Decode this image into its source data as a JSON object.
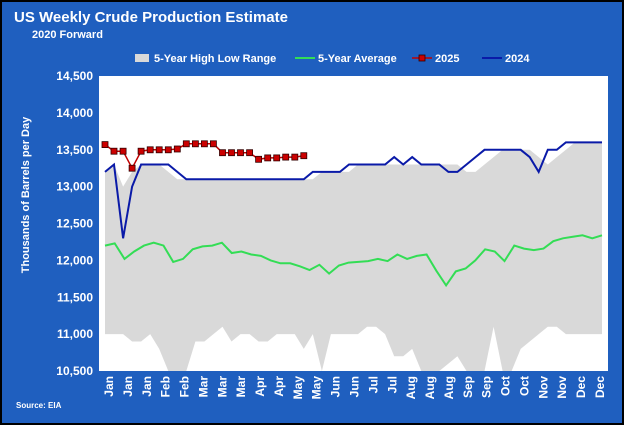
{
  "chart_data": {
    "type": "line",
    "title": "US Weekly Crude Production Estimate",
    "subtitle": "2020 Forward",
    "ylabel": "Thousands of Barrels per Day",
    "source": "Source: EIA",
    "ylim": [
      10500,
      14500
    ],
    "yticks": [
      10500,
      11000,
      11500,
      12000,
      12500,
      13000,
      13500,
      14000,
      14500
    ],
    "ytick_labels": [
      "10,500",
      "11,000",
      "11,500",
      "12,000",
      "12,500",
      "13,000",
      "13,500",
      "14,000",
      "14,500"
    ],
    "x_tick_labels": [
      "Jan",
      "Jan",
      "Jan",
      "Feb",
      "Feb",
      "Mar",
      "Mar",
      "Mar",
      "Apr",
      "Apr",
      "May",
      "May",
      "Jun",
      "Jun",
      "Jul",
      "Jul",
      "Aug",
      "Aug",
      "Aug",
      "Sep",
      "Sep",
      "Oct",
      "Oct",
      "Nov",
      "Nov",
      "Dec",
      "Dec"
    ],
    "grid": false,
    "legend_position": "top",
    "colors": {
      "range": "#d9d9d9",
      "average": "#33dd55",
      "y2025_line": "#c00000",
      "y2025_marker": "#cc0000",
      "y2024": "#0a1aa8",
      "frame": "#1f5fbf",
      "plot_bg": "#ffffff",
      "text": "#ffffff"
    },
    "range_series": {
      "name": "5-Year High Low Range",
      "high": [
        13200,
        13300,
        13000,
        13200,
        13300,
        13300,
        13300,
        13200,
        13100,
        13100,
        13100,
        13100,
        13100,
        13100,
        13100,
        13100,
        13100,
        13100,
        13100,
        13100,
        13100,
        13100,
        13100,
        13100,
        13200,
        13200,
        13200,
        13200,
        13300,
        13300,
        13300,
        13300,
        13300,
        13300,
        13300,
        13300,
        13300,
        13300,
        13300,
        13300,
        13200,
        13200,
        13300,
        13400,
        13500,
        13500,
        13500,
        13500,
        13400,
        13300,
        13400,
        13500,
        13600,
        13600,
        13600,
        13600
      ],
      "low": [
        11000,
        11000,
        11000,
        10900,
        10900,
        11000,
        10800,
        10500,
        10500,
        10500,
        10900,
        10900,
        11000,
        11100,
        10900,
        11000,
        11000,
        10900,
        10900,
        11000,
        11000,
        11000,
        10800,
        11000,
        10500,
        11000,
        11000,
        11000,
        11000,
        11100,
        11100,
        11000,
        10700,
        10700,
        10800,
        10500,
        10500,
        10500,
        10600,
        10700,
        10500,
        10500,
        10500,
        11100,
        10500,
        10500,
        10800,
        10900,
        11000,
        11100,
        11100,
        11000,
        11000,
        11000,
        11000,
        11000
      ]
    },
    "series": [
      {
        "name": "5-Year Average",
        "values": [
          12200,
          12230,
          12020,
          12120,
          12200,
          12240,
          12200,
          11980,
          12020,
          12150,
          12190,
          12200,
          12240,
          12100,
          12120,
          12080,
          12060,
          12000,
          11960,
          11960,
          11920,
          11870,
          11940,
          11820,
          11930,
          11970,
          11980,
          11990,
          12020,
          11990,
          12080,
          12020,
          12060,
          12080,
          11860,
          11660,
          11850,
          11890,
          12000,
          12150,
          12120,
          11990,
          12200,
          12160,
          12140,
          12160,
          12260,
          12300,
          12320,
          12340,
          12300,
          12340
        ]
      },
      {
        "name": "2025",
        "values": [
          13570,
          13480,
          13480,
          13250,
          13480,
          13500,
          13500,
          13500,
          13510,
          13580,
          13580,
          13580,
          13580,
          13460,
          13460,
          13460,
          13460,
          13370,
          13390,
          13390,
          13400,
          13400,
          13420
        ]
      },
      {
        "name": "2024",
        "values": [
          13200,
          13300,
          12300,
          13000,
          13300,
          13300,
          13300,
          13300,
          13200,
          13100,
          13100,
          13100,
          13100,
          13100,
          13100,
          13100,
          13100,
          13100,
          13100,
          13100,
          13100,
          13100,
          13100,
          13200,
          13200,
          13200,
          13200,
          13300,
          13300,
          13300,
          13300,
          13300,
          13400,
          13300,
          13400,
          13300,
          13300,
          13300,
          13200,
          13200,
          13300,
          13400,
          13500,
          13500,
          13500,
          13500,
          13500,
          13400,
          13200,
          13500,
          13500,
          13600,
          13600,
          13600,
          13600,
          13600
        ]
      }
    ]
  }
}
